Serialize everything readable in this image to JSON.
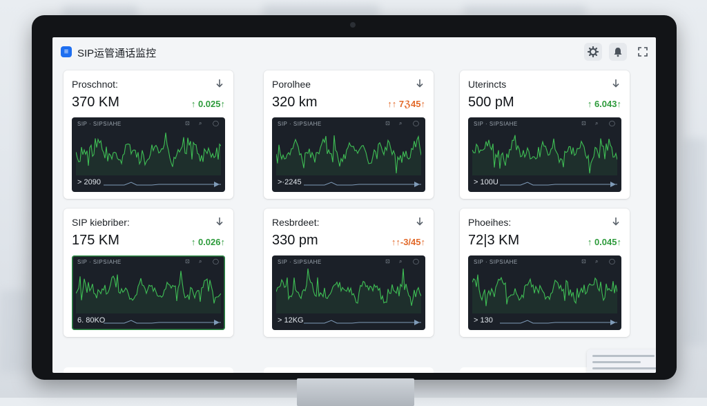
{
  "app": {
    "title": "SIP运管通话监控",
    "icon_glyph": "≡"
  },
  "toolbar": {
    "icons": [
      "gear-icon",
      "bell-icon",
      "expand-icon"
    ]
  },
  "cards": [
    {
      "title": "Proschnot:",
      "value": "370 KM",
      "delta": "↑ 0.025↑",
      "delta_status": "up",
      "chart_head": "SIP · SIPSIAHE",
      "chart_foot": "> 2090",
      "chart_active": false
    },
    {
      "title": "Porolhee",
      "value": "320 km",
      "delta": "↑↑ 7ℨ45↑",
      "delta_status": "mixed",
      "chart_head": "SIP · SIPSIAHE",
      "chart_foot": ">·2245",
      "chart_active": false
    },
    {
      "title": "Uterincts",
      "value": "500 pM",
      "delta": "↑ 6.043↑",
      "delta_status": "up",
      "chart_head": "SIP · SIPSIAHE",
      "chart_foot": "> 100U",
      "chart_active": false
    },
    {
      "title": "SIP kiebriber:",
      "value": "175 KM",
      "delta": "↑ 0.026↑",
      "delta_status": "up",
      "chart_head": "SIP · SIPSIAHE",
      "chart_foot": "6. 80KO",
      "chart_active": true
    },
    {
      "title": "Resbrdeet:",
      "value": "330 pm",
      "delta": "↑↑-3/45↑",
      "delta_status": "warn",
      "chart_head": "SIP · SIPSIAHE",
      "chart_foot": "> 12KG",
      "chart_active": false
    },
    {
      "title": "Phoeihes:",
      "value": "72|3 KM",
      "delta": "↑ 0.045↑",
      "delta_status": "up",
      "chart_head": "SIP · SIPSIAHE",
      "chart_foot": "> 130",
      "chart_active": false
    }
  ],
  "colors": {
    "accent": "#1e6ff0",
    "up": "#2e9b3c",
    "warn": "#e2692a",
    "waveform": "#3fbf55",
    "chart_bg": "#1b2028",
    "timeline": "#7f9bb8"
  }
}
